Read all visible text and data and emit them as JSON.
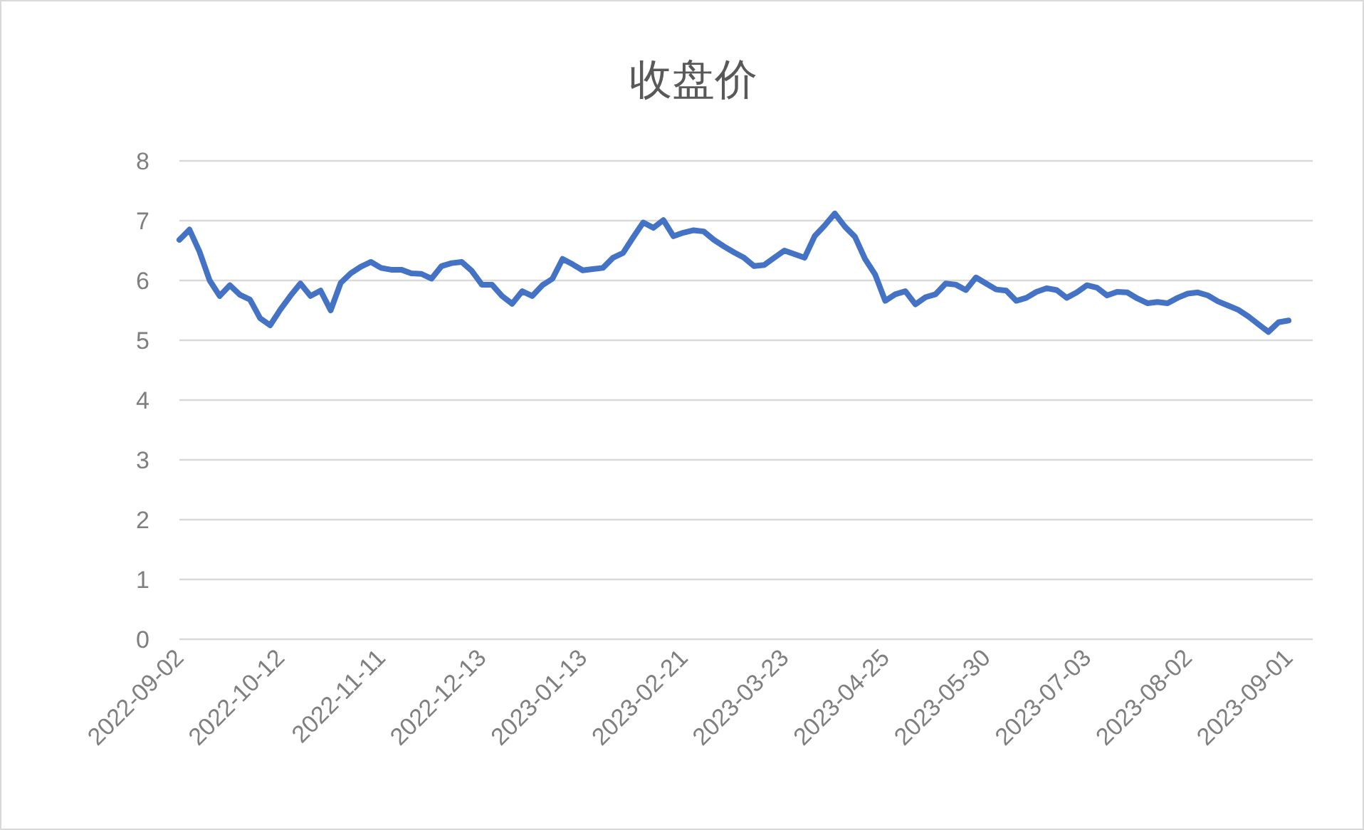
{
  "chart_data": {
    "type": "line",
    "title": "收盘价",
    "categories": [
      "2022-09-02",
      null,
      null,
      null,
      null,
      null,
      null,
      null,
      null,
      null,
      "2022-10-12",
      null,
      null,
      null,
      null,
      null,
      null,
      null,
      null,
      null,
      "2022-11-11",
      null,
      null,
      null,
      null,
      null,
      null,
      null,
      null,
      null,
      "2022-12-13",
      null,
      null,
      null,
      null,
      null,
      null,
      null,
      null,
      null,
      "2023-01-13",
      null,
      null,
      null,
      null,
      null,
      null,
      null,
      null,
      null,
      "2023-02-21",
      null,
      null,
      null,
      null,
      null,
      null,
      null,
      null,
      null,
      "2023-03-23",
      null,
      null,
      null,
      null,
      null,
      null,
      null,
      null,
      null,
      "2023-04-25",
      null,
      null,
      null,
      null,
      null,
      null,
      null,
      null,
      null,
      "2023-05-30",
      null,
      null,
      null,
      null,
      null,
      null,
      null,
      null,
      null,
      "2023-07-03",
      null,
      null,
      null,
      null,
      null,
      null,
      null,
      null,
      null,
      "2023-08-02",
      null,
      null,
      null,
      null,
      null,
      null,
      null,
      null,
      null,
      "2023-09-01"
    ],
    "series": [
      {
        "color": "#4472c4",
        "values": [
          6.68,
          6.85,
          6.48,
          6.0,
          5.74,
          5.92,
          5.76,
          5.68,
          5.37,
          5.25,
          5.51,
          5.74,
          5.95,
          5.74,
          5.83,
          5.5,
          5.96,
          6.12,
          6.23,
          6.31,
          6.21,
          6.18,
          6.18,
          6.12,
          6.11,
          6.03,
          6.24,
          6.29,
          6.31,
          6.16,
          5.93,
          5.93,
          5.74,
          5.61,
          5.82,
          5.74,
          5.92,
          6.03,
          6.36,
          6.27,
          6.17,
          6.19,
          6.21,
          6.38,
          6.46,
          6.72,
          6.97,
          6.88,
          7.01,
          6.74,
          6.8,
          6.84,
          6.82,
          6.68,
          6.57,
          6.47,
          6.38,
          6.24,
          6.26,
          6.38,
          6.5,
          6.44,
          6.38,
          6.74,
          6.92,
          7.12,
          6.9,
          6.73,
          6.36,
          6.1,
          5.66,
          5.77,
          5.82,
          5.6,
          5.72,
          5.77,
          5.95,
          5.93,
          5.84,
          6.05,
          5.95,
          5.85,
          5.83,
          5.66,
          5.71,
          5.81,
          5.87,
          5.84,
          5.71,
          5.8,
          5.92,
          5.88,
          5.75,
          5.81,
          5.8,
          5.7,
          5.62,
          5.64,
          5.62,
          5.71,
          5.78,
          5.8,
          5.75,
          5.65,
          5.58,
          5.51,
          5.4,
          5.27,
          5.14,
          5.3,
          5.33
        ]
      }
    ],
    "ylim": [
      0,
      8
    ],
    "yticks": [
      0,
      1,
      2,
      3,
      4,
      5,
      6,
      7,
      8
    ],
    "grid": "y"
  }
}
